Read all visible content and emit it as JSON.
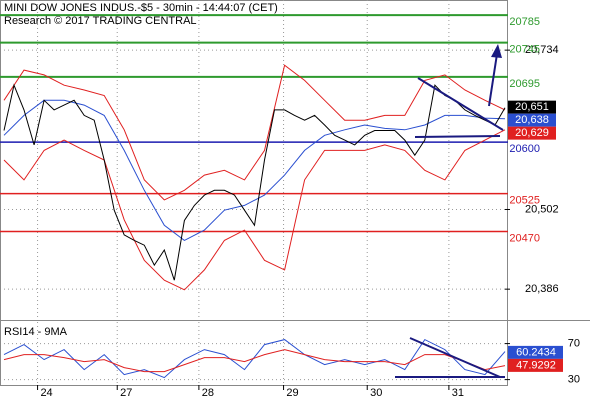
{
  "chart_data": [
    {
      "type": "line",
      "title": "MINI DOW JONES INDUS.-$5 - 30min - 14:44:07 (CET)",
      "subtitle": "Research © 2017 TRADING CENTRAL",
      "xlim": [
        0,
        100
      ],
      "ylim": [
        20344,
        20807
      ],
      "yticks": [
        {
          "value": 20734,
          "label": "20,734"
        },
        {
          "value": 20502,
          "label": "20,502"
        },
        {
          "value": 20386,
          "label": "20,386"
        }
      ],
      "grid": true,
      "levels": [
        {
          "value": 20785,
          "color": "#2e9a2e"
        },
        {
          "value": 20745,
          "color": "#2e9a2e"
        },
        {
          "value": 20695,
          "color": "#2e9a2e"
        },
        {
          "value": 20600,
          "color": "#1c1cb0"
        },
        {
          "value": 20525,
          "color": "#e02020"
        },
        {
          "value": 20470,
          "color": "#e02020"
        }
      ],
      "series": [
        {
          "color": "#e02020",
          "x": [
            0,
            4,
            8,
            12,
            16,
            20,
            24,
            28,
            32,
            36,
            40,
            44,
            48,
            52,
            56,
            60,
            64,
            68,
            72,
            76,
            80,
            84,
            88,
            92,
            96,
            100
          ],
          "values": [
            20661,
            20705,
            20698,
            20683,
            20676,
            20668,
            20618,
            20545,
            20516,
            20530,
            20552,
            20559,
            20545,
            20588,
            20712,
            20690,
            20661,
            20632,
            20632,
            20639,
            20639,
            20690,
            20698,
            20676,
            20661,
            20647
          ]
        },
        {
          "color": "#e02020",
          "x": [
            0,
            4,
            8,
            12,
            16,
            20,
            24,
            28,
            32,
            36,
            40,
            44,
            48,
            52,
            56,
            60,
            64,
            68,
            72,
            76,
            80,
            84,
            88,
            92,
            96,
            100
          ],
          "values": [
            20574,
            20545,
            20588,
            20603,
            20588,
            20574,
            20487,
            20428,
            20399,
            20385,
            20414,
            20457,
            20472,
            20428,
            20414,
            20545,
            20588,
            20588,
            20588,
            20596,
            20588,
            20559,
            20545,
            20588,
            20603,
            20618
          ]
        },
        {
          "color": "#2a4fd0",
          "x": [
            0,
            4,
            8,
            12,
            16,
            20,
            24,
            28,
            32,
            36,
            40,
            44,
            48,
            52,
            56,
            60,
            64,
            68,
            72,
            76,
            80,
            84,
            88,
            92,
            96,
            100
          ],
          "values": [
            20610,
            20639,
            20661,
            20661,
            20654,
            20639,
            20588,
            20530,
            20479,
            20457,
            20472,
            20501,
            20508,
            20523,
            20552,
            20588,
            20610,
            20618,
            20625,
            20620,
            20618,
            20625,
            20639,
            20639,
            20635,
            20634
          ]
        },
        {
          "color": "#000000",
          "x": [
            0,
            2,
            4,
            6,
            8,
            10,
            12,
            14,
            16,
            18,
            20,
            22,
            24,
            26,
            28,
            30,
            32,
            34,
            36,
            38,
            40,
            42,
            44,
            46,
            48,
            50,
            52,
            54,
            56,
            58,
            60,
            62,
            64,
            66,
            68,
            70,
            72,
            74,
            76,
            78,
            80,
            82,
            84,
            86,
            88,
            90,
            92,
            94,
            96,
            98,
            100
          ],
          "values": [
            20617,
            20683,
            20647,
            20596,
            20661,
            20647,
            20654,
            20661,
            20639,
            20632,
            20574,
            20501,
            20465,
            20457,
            20450,
            20421,
            20443,
            20399,
            20486,
            20508,
            20523,
            20530,
            20530,
            20523,
            20501,
            20479,
            20574,
            20647,
            20647,
            20639,
            20632,
            20639,
            20625,
            20610,
            20603,
            20596,
            20610,
            20617,
            20617,
            20617,
            20603,
            20581,
            20603,
            20683,
            20668,
            20661,
            20647,
            20639,
            20632,
            20625,
            20650
          ]
        }
      ],
      "last_values": [
        {
          "value": 20651,
          "label": "20,651",
          "color": "#000000"
        },
        {
          "value": 20638,
          "label": "20,638",
          "color": "#2a4fd0"
        },
        {
          "value": 20629,
          "label": "20,629",
          "color": "#e02020"
        }
      ]
    },
    {
      "type": "line",
      "title": "RSI14 - 9MA",
      "xlim": [
        0,
        100
      ],
      "ylim": [
        24,
        94
      ],
      "yticks": [
        70,
        30
      ],
      "xticks": [
        {
          "value": 6.7,
          "label": "24"
        },
        {
          "value": 22.6,
          "label": "27"
        },
        {
          "value": 38.9,
          "label": "28"
        },
        {
          "value": 55.8,
          "label": "29"
        },
        {
          "value": 72.5,
          "label": "30"
        },
        {
          "value": 88.8,
          "label": "31"
        }
      ],
      "grid": true,
      "series": [
        {
          "color": "#2a4fd0",
          "x": [
            0,
            4,
            8,
            12,
            16,
            20,
            24,
            28,
            32,
            36,
            40,
            44,
            48,
            52,
            56,
            60,
            64,
            68,
            72,
            76,
            80,
            84,
            88,
            92,
            96,
            100
          ],
          "values": [
            57.8,
            68.9,
            52.2,
            63.3,
            41.1,
            57.8,
            35.6,
            41.1,
            32.2,
            52.2,
            63.3,
            57.8,
            41.1,
            68.9,
            74.4,
            57.8,
            46.7,
            52.2,
            46.7,
            52.2,
            41.1,
            74.4,
            63.3,
            41.1,
            35.6,
            61.1
          ]
        },
        {
          "color": "#e02020",
          "x": [
            0,
            4,
            8,
            12,
            16,
            20,
            24,
            28,
            32,
            36,
            40,
            44,
            48,
            52,
            56,
            60,
            64,
            68,
            72,
            76,
            80,
            84,
            88,
            92,
            96,
            100
          ],
          "values": [
            52.2,
            57.8,
            57.8,
            54.4,
            50,
            52.2,
            43.3,
            38.9,
            38.9,
            46.7,
            54.4,
            54.4,
            50,
            57.8,
            63.3,
            57.8,
            52.2,
            50,
            50,
            50,
            46.7,
            57.8,
            57.8,
            50,
            41.1,
            45.6
          ]
        }
      ],
      "last_values": [
        {
          "value": 60.2434,
          "color": "#2a4fd0"
        },
        {
          "value": 47.9292,
          "color": "#e02020"
        }
      ]
    }
  ]
}
